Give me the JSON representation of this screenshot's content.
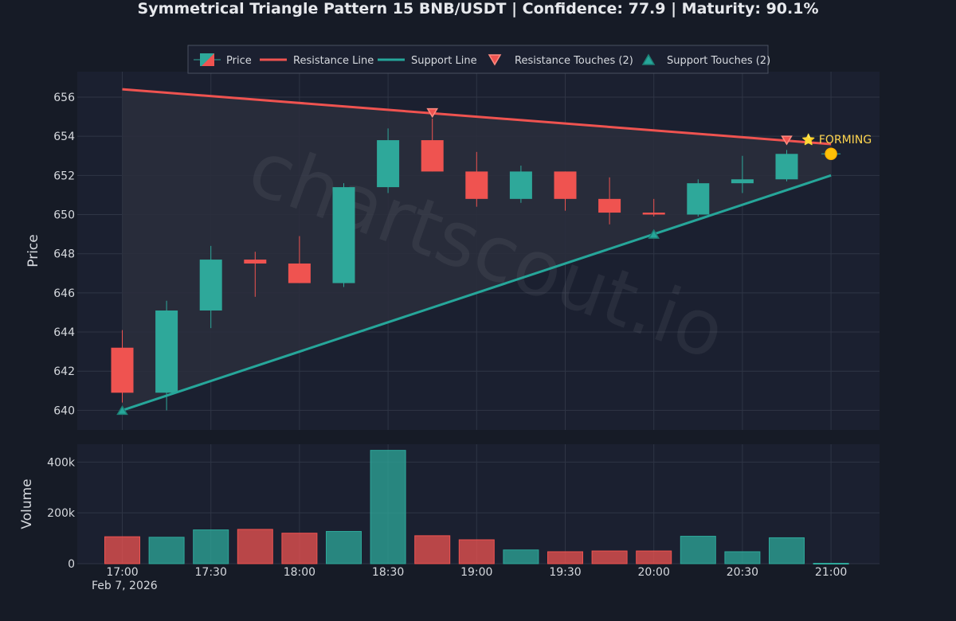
{
  "title": "Symmetrical Triangle Pattern 15 BNB/USDT | Confidence: 77.9 | Maturity: 90.1%",
  "watermark": "chartscout.io",
  "annotation": "⭐ FORMING",
  "date_label": "Feb 7, 2026",
  "colors": {
    "background": "#161b26",
    "panel": "#1b2030",
    "grid": "#2f3545",
    "bullish": "#2ea89a",
    "bearish": "#ef5350",
    "resistance": "#ef5350",
    "support": "#26a69a",
    "triangle_fill": "#2a2e3c",
    "marker_gold": "#ffc107",
    "annotation": "#ffd54f"
  },
  "chart_data": [
    {
      "type": "candlestick",
      "ylabel": "Price",
      "ylim": [
        639,
        657.3
      ],
      "yticks": [
        640,
        642,
        644,
        646,
        648,
        650,
        652,
        654,
        656
      ],
      "grid": true,
      "legend_position": "top-center",
      "legend": [
        {
          "key": "price",
          "label": "Price",
          "symbol": "candle"
        },
        {
          "key": "resistance",
          "label": "Resistance Line",
          "symbol": "line"
        },
        {
          "key": "support",
          "label": "Support Line",
          "symbol": "line"
        },
        {
          "key": "res_touch",
          "label": "Resistance Touches (2)",
          "symbol": "triangle-down"
        },
        {
          "key": "sup_touch",
          "label": "Support Touches (2)",
          "symbol": "triangle-up"
        }
      ],
      "candles": [
        {
          "t": "17:00",
          "open": 643.2,
          "high": 644.1,
          "low": 640.4,
          "close": 640.9
        },
        {
          "t": "17:15",
          "open": 640.9,
          "high": 645.6,
          "low": 640.0,
          "close": 645.1
        },
        {
          "t": "17:30",
          "open": 645.1,
          "high": 648.4,
          "low": 644.2,
          "close": 647.7
        },
        {
          "t": "17:45",
          "open": 647.7,
          "high": 648.1,
          "low": 645.8,
          "close": 647.5
        },
        {
          "t": "18:00",
          "open": 647.5,
          "high": 648.9,
          "low": 646.5,
          "close": 646.5
        },
        {
          "t": "18:15",
          "open": 646.5,
          "high": 651.6,
          "low": 646.3,
          "close": 651.4
        },
        {
          "t": "18:30",
          "open": 651.4,
          "high": 654.4,
          "low": 651.1,
          "close": 653.8
        },
        {
          "t": "18:45",
          "open": 653.8,
          "high": 654.9,
          "low": 652.2,
          "close": 652.2
        },
        {
          "t": "19:00",
          "open": 652.2,
          "high": 653.2,
          "low": 650.4,
          "close": 650.8
        },
        {
          "t": "19:15",
          "open": 650.8,
          "high": 652.5,
          "low": 650.6,
          "close": 652.2
        },
        {
          "t": "19:30",
          "open": 652.2,
          "high": 652.2,
          "low": 650.2,
          "close": 650.8
        },
        {
          "t": "19:45",
          "open": 650.8,
          "high": 651.9,
          "low": 649.5,
          "close": 650.1
        },
        {
          "t": "20:00",
          "open": 650.1,
          "high": 650.8,
          "low": 649.9,
          "close": 650.0
        },
        {
          "t": "20:15",
          "open": 650.0,
          "high": 651.8,
          "low": 649.9,
          "close": 651.6
        },
        {
          "t": "20:30",
          "open": 651.6,
          "high": 653.0,
          "low": 651.1,
          "close": 651.8
        },
        {
          "t": "20:45",
          "open": 651.8,
          "high": 653.3,
          "low": 651.7,
          "close": 653.1
        },
        {
          "t": "21:00",
          "open": 653.1,
          "high": 653.1,
          "low": 653.1,
          "close": 653.1
        }
      ],
      "resistance_line": {
        "start": {
          "t": "17:00",
          "price": 656.4
        },
        "end": {
          "t": "21:00",
          "price": 653.6
        }
      },
      "support_line": {
        "start": {
          "t": "17:00",
          "price": 640.0
        },
        "end": {
          "t": "21:00",
          "price": 652.0
        }
      },
      "resistance_touches": [
        {
          "t": "18:45",
          "price": 655.2
        },
        {
          "t": "20:45",
          "price": 653.8
        }
      ],
      "support_touches": [
        {
          "t": "17:00",
          "price": 640.0
        },
        {
          "t": "20:00",
          "price": 649.0
        }
      ],
      "current_marker": {
        "t": "21:00",
        "price": 653.1
      }
    },
    {
      "type": "bar",
      "ylabel": "Volume",
      "ylim": [
        0,
        470000
      ],
      "yticks": [
        0,
        200000,
        400000
      ],
      "ytick_labels": [
        "0",
        "200k",
        "400k"
      ],
      "xtick_labels": [
        "17:00",
        "17:30",
        "18:00",
        "18:30",
        "19:00",
        "19:30",
        "20:00",
        "20:30",
        "21:00"
      ],
      "bars": [
        {
          "t": "17:00",
          "value": 106000,
          "dir": "down"
        },
        {
          "t": "17:15",
          "value": 104000,
          "dir": "up"
        },
        {
          "t": "17:30",
          "value": 133000,
          "dir": "up"
        },
        {
          "t": "17:45",
          "value": 135000,
          "dir": "down"
        },
        {
          "t": "18:00",
          "value": 120000,
          "dir": "down"
        },
        {
          "t": "18:15",
          "value": 127000,
          "dir": "up"
        },
        {
          "t": "18:30",
          "value": 446000,
          "dir": "up"
        },
        {
          "t": "18:45",
          "value": 110000,
          "dir": "down"
        },
        {
          "t": "19:00",
          "value": 94000,
          "dir": "down"
        },
        {
          "t": "19:15",
          "value": 54000,
          "dir": "up"
        },
        {
          "t": "19:30",
          "value": 47000,
          "dir": "down"
        },
        {
          "t": "19:45",
          "value": 50000,
          "dir": "down"
        },
        {
          "t": "20:00",
          "value": 50000,
          "dir": "down"
        },
        {
          "t": "20:15",
          "value": 108000,
          "dir": "up"
        },
        {
          "t": "20:30",
          "value": 47000,
          "dir": "up"
        },
        {
          "t": "20:45",
          "value": 102000,
          "dir": "up"
        },
        {
          "t": "21:00",
          "value": 1500,
          "dir": "up"
        }
      ]
    }
  ]
}
